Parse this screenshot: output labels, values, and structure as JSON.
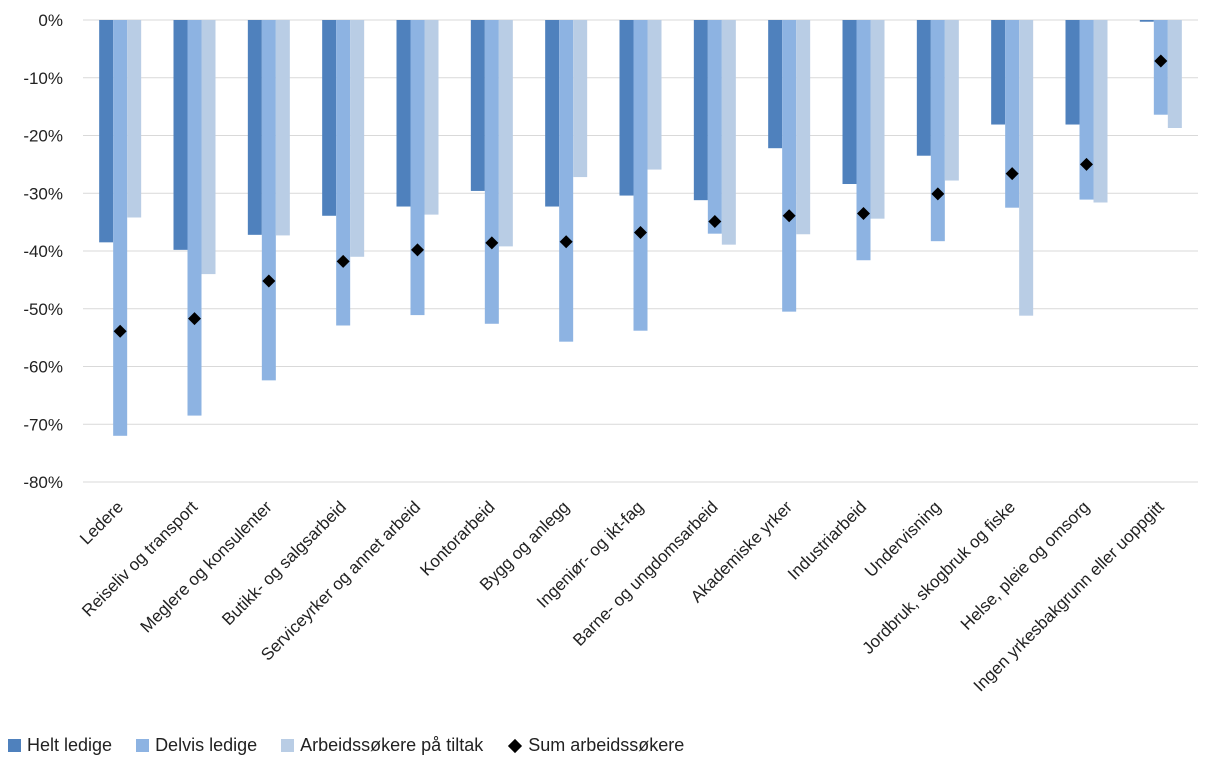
{
  "chart_data": {
    "type": "bar",
    "categories": [
      "Ledere",
      "Reiseliv og transport",
      "Meglere og konsulenter",
      "Butikk- og salgsarbeid",
      "Serviceyrker og annet arbeid",
      "Kontorarbeid",
      "Bygg og anlegg",
      "Ingeniør- og ikt-fag",
      "Barne- og ungdomsarbeid",
      "Akademiske yrker",
      "Industriarbeid",
      "Undervisning",
      "Jordbruk, skogbruk og fiske",
      "Helse, pleie og omsorg",
      "Ingen yrkesbakgrunn eller uoppgitt"
    ],
    "series": [
      {
        "name": "Helt ledige",
        "kind": "bar",
        "color": "#4f81bd",
        "values": [
          -38.5,
          -39.8,
          -37.2,
          -33.9,
          -32.3,
          -29.6,
          -32.3,
          -30.4,
          -31.2,
          -22.2,
          -28.4,
          -23.5,
          -18.1,
          -18.1,
          -0.3
        ]
      },
      {
        "name": "Delvis ledige",
        "kind": "bar",
        "color": "#8db3e2",
        "values": [
          -72.0,
          -68.5,
          -62.4,
          -52.9,
          -51.1,
          -52.6,
          -55.7,
          -53.8,
          -37.0,
          -50.5,
          -41.6,
          -38.3,
          -32.5,
          -31.1,
          -16.4
        ]
      },
      {
        "name": "Arbeidssøkere på tiltak",
        "kind": "bar",
        "color": "#b9cde5",
        "values": [
          -34.2,
          -44.0,
          -37.3,
          -41.0,
          -33.7,
          -39.2,
          -27.2,
          -25.9,
          -38.9,
          -37.1,
          -34.4,
          -27.8,
          -51.2,
          -31.6,
          -18.7
        ]
      },
      {
        "name": "Sum arbeidssøkere",
        "kind": "marker",
        "color": "#000000",
        "values": [
          -53.9,
          -51.7,
          -45.2,
          -41.8,
          -39.8,
          -38.6,
          -38.4,
          -36.8,
          -34.9,
          -33.9,
          -33.5,
          -30.1,
          -26.6,
          -25.0,
          -7.1
        ]
      }
    ],
    "ylim": [
      -80,
      0
    ],
    "ytick_labels": [
      "0%",
      "-10%",
      "-20%",
      "-30%",
      "-40%",
      "-50%",
      "-60%",
      "-70%",
      "-80%"
    ],
    "grid": true,
    "legend_position": "bottom-left",
    "title": "",
    "xlabel": "",
    "ylabel": ""
  }
}
